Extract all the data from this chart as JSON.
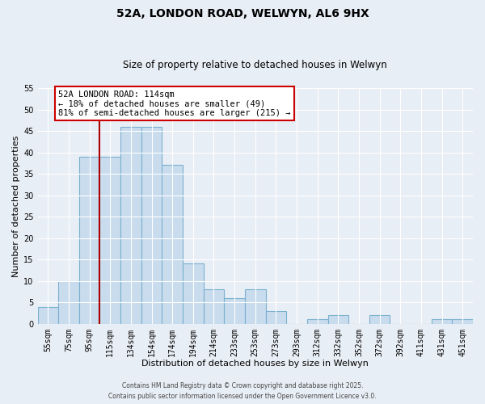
{
  "title": "52A, LONDON ROAD, WELWYN, AL6 9HX",
  "subtitle": "Size of property relative to detached houses in Welwyn",
  "xlabel": "Distribution of detached houses by size in Welwyn",
  "ylabel": "Number of detached properties",
  "bar_labels": [
    "55sqm",
    "75sqm",
    "95sqm",
    "115sqm",
    "134sqm",
    "154sqm",
    "174sqm",
    "194sqm",
    "214sqm",
    "233sqm",
    "253sqm",
    "273sqm",
    "293sqm",
    "312sqm",
    "332sqm",
    "352sqm",
    "372sqm",
    "392sqm",
    "411sqm",
    "431sqm",
    "451sqm"
  ],
  "bar_values": [
    4,
    10,
    39,
    39,
    46,
    46,
    37,
    14,
    8,
    6,
    8,
    3,
    0,
    1,
    2,
    0,
    2,
    0,
    0,
    1,
    1
  ],
  "bar_color": "#c8dced",
  "bar_edge_color": "#7ab0d0",
  "ylim": [
    0,
    55
  ],
  "yticks": [
    0,
    5,
    10,
    15,
    20,
    25,
    30,
    35,
    40,
    45,
    50,
    55
  ],
  "vline_x_index": 3,
  "vline_color": "#aa0000",
  "annotation_text": "52A LONDON ROAD: 114sqm\n← 18% of detached houses are smaller (49)\n81% of semi-detached houses are larger (215) →",
  "annotation_box_color": "#ffffff",
  "annotation_box_edge": "#cc0000",
  "footnote1": "Contains HM Land Registry data © Crown copyright and database right 2025.",
  "footnote2": "Contains public sector information licensed under the Open Government Licence v3.0.",
  "background_color": "#e8eef5",
  "grid_color": "#ffffff",
  "title_fontsize": 10,
  "subtitle_fontsize": 8.5,
  "tick_fontsize": 7,
  "ylabel_fontsize": 8,
  "xlabel_fontsize": 8
}
